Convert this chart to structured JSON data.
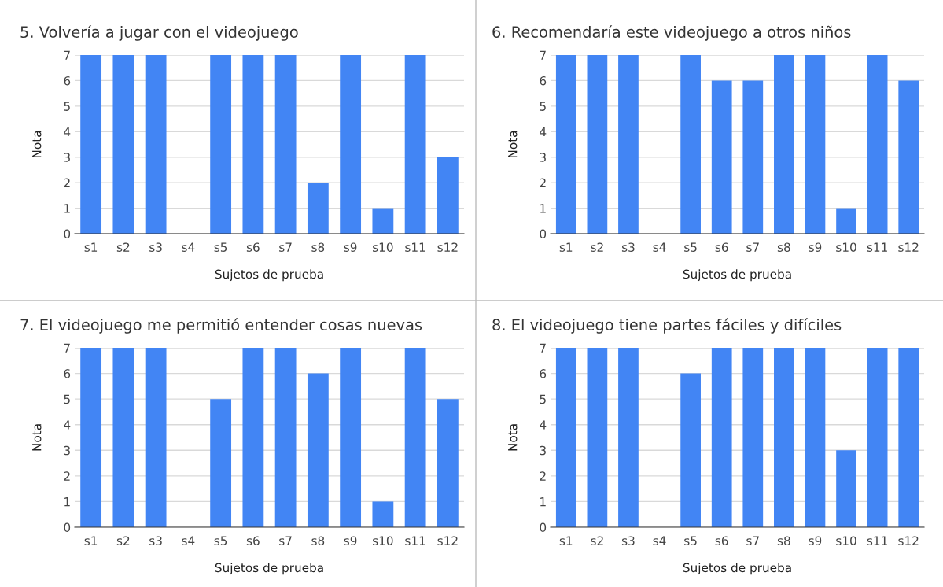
{
  "chart_data": [
    {
      "type": "bar",
      "title": "5. Volvería a jugar con el videojuego",
      "xlabel": "Sujetos de prueba",
      "ylabel": "Nota",
      "categories": [
        "s1",
        "s2",
        "s3",
        "s4",
        "s5",
        "s6",
        "s7",
        "s8",
        "s9",
        "s10",
        "s11",
        "s12"
      ],
      "values": [
        7,
        7,
        7,
        0,
        7,
        7,
        7,
        2,
        7,
        1,
        7,
        3
      ],
      "color": "#4285f4",
      "ylim": [
        0,
        7
      ],
      "yticks": [
        0,
        1,
        2,
        3,
        4,
        5,
        6,
        7
      ],
      "grid": "y"
    },
    {
      "type": "bar",
      "title": "6. Recomendaría este videojuego a otros niños",
      "xlabel": "Sujetos de prueba",
      "ylabel": "Nota",
      "categories": [
        "s1",
        "s2",
        "s3",
        "s4",
        "s5",
        "s6",
        "s7",
        "s8",
        "s9",
        "s10",
        "s11",
        "s12"
      ],
      "values": [
        7,
        7,
        7,
        0,
        7,
        6,
        6,
        7,
        7,
        1,
        7,
        6
      ],
      "color": "#4285f4",
      "ylim": [
        0,
        7
      ],
      "yticks": [
        0,
        1,
        2,
        3,
        4,
        5,
        6,
        7
      ],
      "grid": "y"
    },
    {
      "type": "bar",
      "title": "7. El videojuego me permitió entender cosas nuevas",
      "xlabel": "Sujetos de prueba",
      "ylabel": "Nota",
      "categories": [
        "s1",
        "s2",
        "s3",
        "s4",
        "s5",
        "s6",
        "s7",
        "s8",
        "s9",
        "s10",
        "s11",
        "s12"
      ],
      "values": [
        7,
        7,
        7,
        0,
        5,
        7,
        7,
        6,
        7,
        1,
        7,
        5
      ],
      "color": "#4285f4",
      "ylim": [
        0,
        7
      ],
      "yticks": [
        0,
        1,
        2,
        3,
        4,
        5,
        6,
        7
      ],
      "grid": "y"
    },
    {
      "type": "bar",
      "title": "8. El videojuego tiene partes fáciles y difíciles",
      "xlabel": "Sujetos de prueba",
      "ylabel": "Nota",
      "categories": [
        "s1",
        "s2",
        "s3",
        "s4",
        "s5",
        "s6",
        "s7",
        "s8",
        "s9",
        "s10",
        "s11",
        "s12"
      ],
      "values": [
        7,
        7,
        7,
        0,
        6,
        7,
        7,
        7,
        7,
        3,
        7,
        7
      ],
      "color": "#4285f4",
      "ylim": [
        0,
        7
      ],
      "yticks": [
        0,
        1,
        2,
        3,
        4,
        5,
        6,
        7
      ],
      "grid": "y"
    }
  ]
}
